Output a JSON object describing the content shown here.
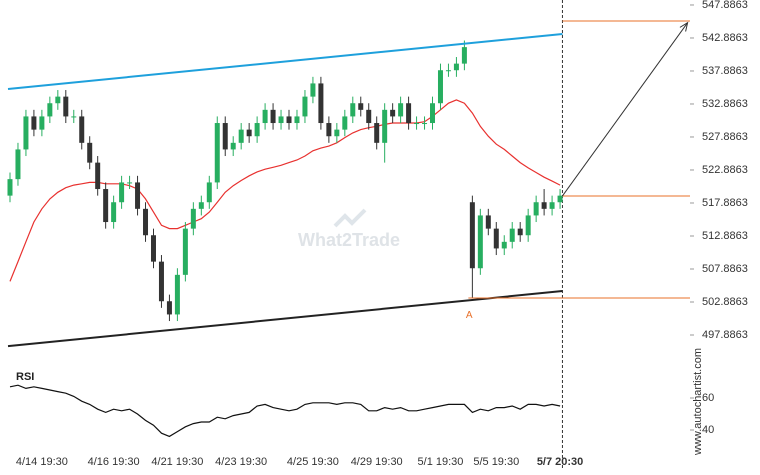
{
  "chart_data": {
    "type": "candlestick",
    "categories": [
      null,
      null,
      null,
      null,
      "4/14 19:30",
      null,
      null,
      null,
      null,
      null,
      null,
      null,
      null,
      "4/16 19:30",
      null,
      null,
      null,
      null,
      null,
      null,
      null,
      "4/21 19:30",
      null,
      null,
      null,
      null,
      null,
      null,
      null,
      "4/23 19:30",
      null,
      null,
      null,
      null,
      null,
      null,
      null,
      null,
      "4/25 19:30",
      null,
      null,
      null,
      null,
      null,
      null,
      null,
      "4/29 19:30",
      null,
      null,
      null,
      null,
      null,
      null,
      null,
      "5/1 19:30",
      null,
      null,
      null,
      null,
      null,
      null,
      "5/5 19:30",
      null,
      null,
      null,
      null,
      null,
      null,
      null,
      "5/7 20:30"
    ],
    "open": [
      519,
      521.5,
      526,
      531,
      529,
      531,
      533,
      534,
      531,
      531,
      527,
      524,
      520,
      515,
      518,
      521,
      521,
      517,
      513,
      509,
      503,
      501,
      507,
      514,
      517,
      518,
      521,
      530,
      526,
      527,
      529,
      528,
      530,
      532,
      530,
      531,
      530,
      531,
      534,
      536,
      530,
      528,
      529,
      531,
      533,
      532,
      530,
      527,
      532,
      531,
      533,
      530,
      530,
      530,
      533,
      538,
      538,
      539,
      518,
      508,
      516,
      514,
      511,
      512,
      514,
      513,
      516,
      518,
      517,
      518
    ],
    "high": [
      522.5,
      527,
      532,
      532,
      532,
      534,
      535,
      535,
      532,
      532,
      528,
      525,
      521,
      519,
      522,
      522,
      522,
      518,
      514,
      510,
      504,
      508,
      515,
      518,
      519,
      522,
      531,
      531,
      528,
      530,
      530,
      531,
      533,
      533,
      532,
      532,
      532,
      535,
      537,
      537,
      531,
      530,
      532,
      534,
      534,
      533,
      531,
      533,
      533,
      534,
      534,
      531,
      531,
      534,
      539,
      539,
      540,
      542.5,
      519,
      517,
      517,
      515,
      513,
      515,
      515,
      517,
      519,
      520,
      519,
      520
    ],
    "low": [
      518,
      520.5,
      525,
      528,
      528,
      530,
      532,
      530,
      530,
      526,
      523,
      519,
      514,
      514,
      517,
      520,
      516,
      512,
      508,
      502,
      500,
      500,
      506,
      513,
      516,
      517,
      520,
      525,
      525,
      526,
      527,
      527,
      529,
      529,
      529,
      529,
      529,
      530,
      533,
      529,
      527,
      527,
      528,
      530,
      531,
      529,
      526,
      524,
      530,
      530,
      529,
      529,
      529,
      529,
      532,
      537,
      537,
      538,
      503.5,
      507,
      513,
      510,
      510,
      511,
      512,
      512,
      515,
      516,
      516,
      517
    ],
    "close": [
      521.5,
      526,
      531,
      529,
      531,
      533,
      534,
      531,
      531,
      527,
      524,
      520,
      515,
      518,
      521,
      521,
      517,
      513,
      509,
      503,
      501,
      507,
      514,
      517,
      518,
      521,
      530,
      526,
      527,
      529,
      528,
      530,
      532,
      530,
      531,
      530,
      531,
      534,
      536,
      530,
      528,
      529,
      531,
      533,
      532,
      530,
      527,
      532,
      531,
      533,
      530,
      530,
      530,
      533,
      538,
      538,
      539,
      541.5,
      508,
      516,
      514,
      511,
      512,
      514,
      513,
      516,
      518,
      517,
      518,
      519
    ],
    "up_color": "#27ae60",
    "down_color": "#333333",
    "xlim": [
      -0.25,
      85.3
    ],
    "ylim": [
      493.34,
      548.64
    ],
    "yticks": [
      547.8863,
      542.8863,
      537.8863,
      532.8863,
      527.8863,
      522.8863,
      517.8863,
      512.8863,
      507.8863,
      502.8863,
      497.8863
    ],
    "moving_average": {
      "color": "#e8312f",
      "values": [
        506,
        509,
        512,
        515,
        517,
        518.5,
        519.5,
        520.2,
        520.6,
        520.8,
        521,
        521,
        520.8,
        520.8,
        520.8,
        520.5,
        520,
        518.5,
        516.5,
        514.5,
        514,
        514,
        514.5,
        515,
        515.5,
        516.5,
        518,
        519.5,
        520.5,
        521.3,
        522,
        522.6,
        523,
        523.3,
        523.6,
        524,
        524.4,
        525,
        525.8,
        526.2,
        526.5,
        527,
        527.8,
        528.5,
        529,
        529.3,
        529.5,
        529.8,
        530,
        530,
        530,
        530,
        530.2,
        531,
        532,
        533,
        533.5,
        533,
        531.5,
        529.5,
        528,
        526.8,
        526,
        525,
        524,
        523.2,
        522.5,
        521.8,
        521.2,
        520.6
      ]
    },
    "trendlines": [
      {
        "color": "#1ea0dc",
        "x": [
          -0.25,
          69.3
        ],
        "y": [
          535.16,
          543.49
        ]
      },
      {
        "color": "#222222",
        "x": [
          -0.25,
          69.3
        ],
        "y": [
          496.2,
          504.55
        ]
      }
    ],
    "levels": [
      {
        "color": "#e8702a",
        "value": 545.46,
        "from": 69.3
      },
      {
        "color": "#e8702a",
        "value": 518.95,
        "from": 69.3
      },
      {
        "color": "#e8702a",
        "value": 503.49,
        "from": 57.5
      }
    ],
    "arrow": {
      "color": "#333333",
      "x": [
        69.3,
        85.0
      ],
      "y": [
        518.95,
        545.2
      ]
    },
    "point_label": {
      "text": "A",
      "x": 57.6,
      "y": 501.8,
      "color": "#e8702a"
    },
    "cursor_x": 69.3,
    "watermark": "What2Trade",
    "source": "www.autochartist.com",
    "rsi": {
      "label": "RSI",
      "color": "#111111",
      "ylim": [
        27.5,
        78.75
      ],
      "yticks": [
        60,
        40
      ],
      "values": [
        67,
        68,
        66,
        67,
        66,
        65,
        64,
        63,
        61,
        58,
        56,
        53,
        51,
        53,
        52,
        53,
        50,
        46,
        43,
        38,
        36,
        39,
        42,
        44,
        45,
        45,
        48,
        47,
        49,
        50,
        51,
        55,
        56,
        54,
        53,
        52,
        53,
        56,
        57,
        57,
        57,
        56,
        57,
        57,
        56,
        52,
        52,
        54,
        53,
        54,
        52,
        52,
        53,
        54,
        55,
        56,
        56,
        56,
        51,
        53,
        52,
        54,
        54,
        55,
        53,
        56,
        56,
        55,
        56,
        55
      ]
    }
  }
}
